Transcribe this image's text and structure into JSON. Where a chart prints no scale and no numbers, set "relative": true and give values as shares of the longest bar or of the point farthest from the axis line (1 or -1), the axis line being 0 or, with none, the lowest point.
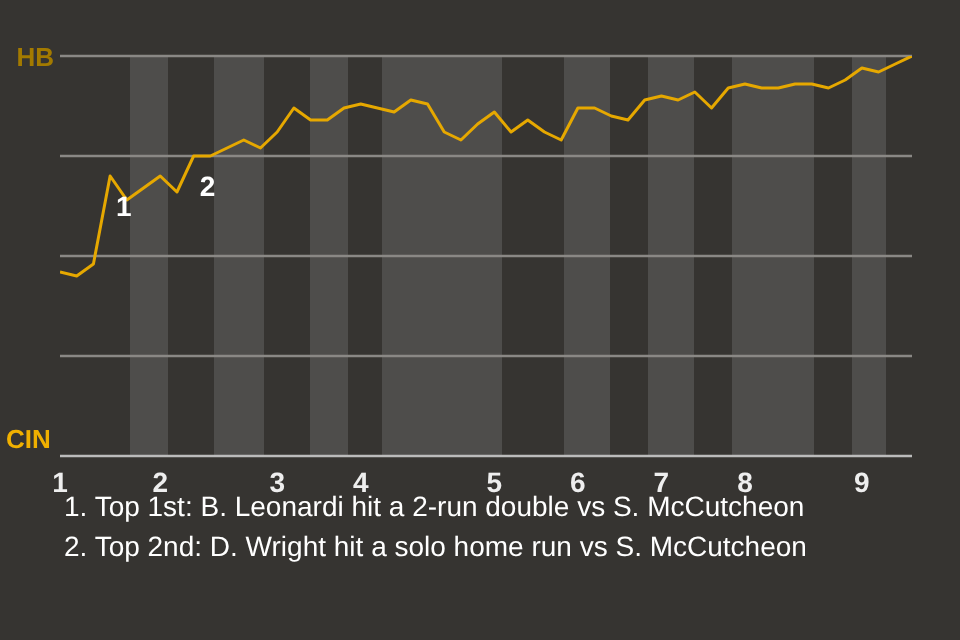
{
  "chart_data": {
    "type": "line",
    "relative": true,
    "categories": [
      "1",
      null,
      null,
      null,
      null,
      null,
      "2",
      null,
      null,
      null,
      null,
      null,
      null,
      "3",
      null,
      null,
      null,
      null,
      "4",
      null,
      null,
      null,
      null,
      null,
      null,
      null,
      "5",
      null,
      null,
      null,
      null,
      "6",
      null,
      null,
      null,
      null,
      "7",
      null,
      null,
      null,
      null,
      "8",
      null,
      null,
      null,
      null,
      null,
      null,
      "9",
      null,
      null,
      null
    ],
    "series": [
      {
        "color": "#e6a800",
        "values": [
          0.46,
          0.45,
          0.48,
          0.7,
          0.64,
          0.67,
          0.7,
          0.66,
          0.75,
          0.75,
          0.77,
          0.79,
          0.77,
          0.81,
          0.87,
          0.84,
          0.84,
          0.87,
          0.88,
          0.87,
          0.86,
          0.89,
          0.88,
          0.81,
          0.79,
          0.83,
          0.86,
          0.81,
          0.84,
          0.81,
          0.79,
          0.87,
          0.87,
          0.85,
          0.84,
          0.89,
          0.9,
          0.89,
          0.91,
          0.87,
          0.92,
          0.93,
          0.92,
          0.92,
          0.93,
          0.93,
          0.92,
          0.94,
          0.97,
          0.96,
          0.98,
          1
        ]
      }
    ],
    "legend": false,
    "marker": "none",
    "line_style": "solid",
    "ref_lines": [
      {
        "axis": "y",
        "value": 1,
        "label": "HB",
        "color": "#8a8885"
      },
      {
        "axis": "y",
        "value": 0.75,
        "label": null,
        "color": "#8a8885"
      },
      {
        "axis": "y",
        "value": 0.5,
        "label": null,
        "color": "#8a8885"
      },
      {
        "axis": "y",
        "value": 0.25,
        "label": null,
        "color": "#8a8885"
      }
    ],
    "annotations": [
      "CIN",
      {
        "text": "1",
        "y": 0.7
      },
      {
        "text": "2",
        "y": 0.75
      },
      "1. Top 1st: B. Leonardi hit a 2-run double vs S. McCutcheon",
      "2. Top 2nd: D. Wright hit a solo home run vs S. McCutcheon"
    ]
  }
}
